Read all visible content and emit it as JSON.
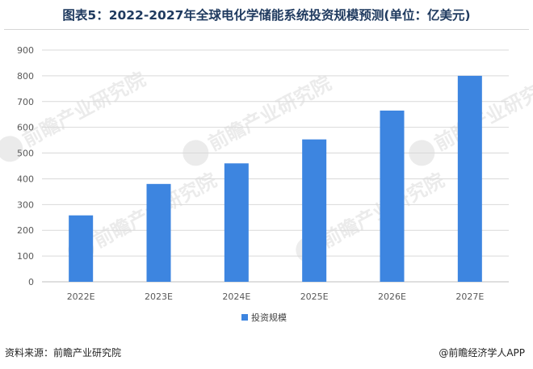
{
  "title": "图表5：2022-2027年全球电化学储能系统投资规模预测(单位：亿美元)",
  "source": "资料来源：前瞻产业研究院",
  "credit": "@前瞻经济学人APP",
  "watermark": "前瞻产业研究院",
  "colors": {
    "bar": "#3d85e0",
    "grid": "#d9d9d9",
    "axis": "#bfbfbf"
  },
  "chart_data": {
    "type": "bar",
    "categories": [
      "2022E",
      "2023E",
      "2024E",
      "2025E",
      "2026E",
      "2027E"
    ],
    "series": [
      {
        "name": "投资规模",
        "values": [
          258,
          380,
          460,
          553,
          665,
          800
        ]
      }
    ],
    "ylim": [
      0,
      900
    ],
    "yticks": [
      0,
      100,
      200,
      300,
      400,
      500,
      600,
      700,
      800,
      900
    ],
    "xlabel": "",
    "ylabel": "",
    "grid": true,
    "legend": "bottom"
  }
}
